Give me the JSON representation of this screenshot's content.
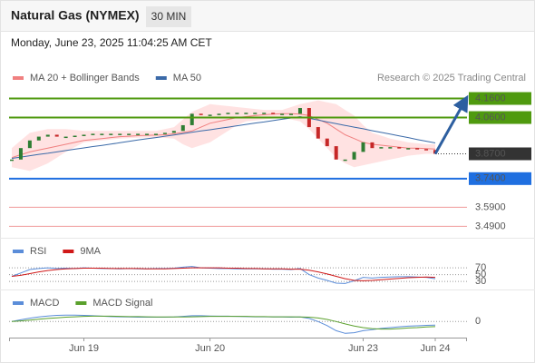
{
  "chart_data": [
    {
      "type": "candlestick",
      "title": "Natural Gas (NYMEX)",
      "timeframe": "30 MIN",
      "subtitle": "Monday, June 23, 2025 11:04:25 AM CET",
      "source": "Research © 2025 Trading Central",
      "categories": [
        null,
        null,
        null,
        null,
        null,
        null,
        null,
        null,
        "Jun 19",
        null,
        null,
        null,
        null,
        null,
        null,
        null,
        null,
        null,
        null,
        null,
        null,
        null,
        "Jun 20",
        null,
        null,
        null,
        null,
        null,
        null,
        null,
        null,
        null,
        null,
        null,
        null,
        null,
        null,
        null,
        null,
        "Jun 23",
        null,
        null,
        null,
        null,
        null,
        null,
        null,
        "Jun 24"
      ],
      "values": [
        3.84,
        3.9,
        3.94,
        3.96,
        3.97,
        3.96,
        3.96,
        3.965,
        3.97,
        3.975,
        3.975,
        3.975,
        3.975,
        3.975,
        3.975,
        3.975,
        3.975,
        3.98,
        3.99,
        4.02,
        4.08,
        4.075,
        4.075,
        4.08,
        4.085,
        4.085,
        4.085,
        4.085,
        4.085,
        4.08,
        4.08,
        4.08,
        4.11,
        4.01,
        3.95,
        3.91,
        3.84,
        3.84,
        3.88,
        3.93,
        3.9,
        3.905,
        3.905,
        3.9,
        3.9,
        3.895,
        3.89,
        3.87
      ],
      "up_color": "#2e7d32",
      "down_color": "#c62828",
      "series": [
        {
          "name": "MA 20 + Bollinger Bands",
          "color": "#f08080",
          "band_color": "#ffd6d6",
          "values": [
            3.85,
            3.865,
            3.88,
            3.89,
            3.9,
            3.91,
            3.92,
            3.93,
            3.94,
            3.945,
            3.95,
            3.955,
            3.96,
            3.962,
            3.965,
            3.967,
            3.968,
            3.97,
            3.975,
            3.982,
            3.99,
            4.01,
            4.03,
            4.04,
            4.05,
            4.06,
            4.065,
            4.07,
            4.075,
            4.078,
            4.08,
            4.08,
            4.078,
            4.07,
            4.05,
            4.03,
            4.0,
            3.97,
            3.95,
            3.93,
            3.92,
            3.915,
            3.91,
            3.905,
            3.9,
            3.9,
            3.897,
            3.895
          ],
          "upper": [
            3.9,
            3.94,
            3.98,
            3.99,
            4.0,
            4.0,
            4.0,
            3.995,
            3.99,
            3.99,
            3.99,
            3.99,
            3.99,
            3.99,
            3.99,
            3.99,
            3.99,
            4.0,
            4.01,
            4.05,
            4.09,
            4.11,
            4.13,
            4.125,
            4.12,
            4.115,
            4.11,
            4.105,
            4.1,
            4.1,
            4.1,
            4.115,
            4.13,
            4.14,
            4.15,
            4.14,
            4.13,
            4.1,
            4.07,
            4.02,
            3.98,
            3.965,
            3.95,
            3.94,
            3.93,
            3.925,
            3.92,
            3.92
          ],
          "lower": [
            3.8,
            3.79,
            3.78,
            3.8,
            3.82,
            3.85,
            3.88,
            3.905,
            3.93,
            3.935,
            3.94,
            3.945,
            3.95,
            3.952,
            3.954,
            3.955,
            3.955,
            3.953,
            3.95,
            3.92,
            3.9,
            3.915,
            3.93,
            3.96,
            3.99,
            4.02,
            4.04,
            4.045,
            4.05,
            4.055,
            4.06,
            4.05,
            4.04,
            4.0,
            3.95,
            3.9,
            3.85,
            3.82,
            3.8,
            3.81,
            3.82,
            3.83,
            3.84,
            3.85,
            3.86,
            3.865,
            3.87,
            3.87
          ]
        },
        {
          "name": "MA 50",
          "color": "#3b6aa8",
          "values": [
            3.846,
            3.853,
            3.86,
            3.867,
            3.873,
            3.88,
            3.887,
            3.894,
            3.901,
            3.908,
            3.914,
            3.921,
            3.928,
            3.935,
            3.942,
            3.949,
            3.955,
            3.962,
            3.969,
            3.976,
            3.983,
            3.99,
            3.996,
            4.003,
            4.01,
            4.017,
            4.024,
            4.031,
            4.037,
            4.044,
            4.051,
            4.058,
            4.065,
            4.056,
            4.047,
            4.037,
            4.028,
            4.019,
            4.01,
            4.001,
            3.991,
            3.982,
            3.973,
            3.964,
            3.955,
            3.945,
            3.936,
            3.927
          ]
        }
      ],
      "levels": [
        {
          "value": 4.16,
          "label": "4.1600",
          "color": "#4f9a0f",
          "box": true,
          "line": "solid"
        },
        {
          "value": 4.06,
          "label": "4.0600",
          "color": "#4f9a0f",
          "box": true,
          "line": "solid"
        },
        {
          "value": 3.87,
          "label": "3.8700",
          "color": "#333333",
          "box": true,
          "line": "dotted"
        },
        {
          "value": 3.74,
          "label": "3.7400",
          "color": "#1f6fe0",
          "box": true,
          "line": "solid"
        },
        {
          "value": 3.59,
          "label": "3.5900",
          "color": "#e03434",
          "box": false,
          "line": "solid"
        },
        {
          "value": 3.49,
          "label": "3.4900",
          "color": "#e03434",
          "box": false,
          "line": "solid"
        }
      ],
      "ylim": [
        3.43,
        4.21
      ]
    },
    {
      "type": "line",
      "series": [
        {
          "name": "RSI",
          "color": "#5b8dd9",
          "values": [
            45,
            55,
            65,
            68,
            70,
            68,
            69,
            68,
            70,
            69,
            68,
            68,
            67,
            68,
            67,
            67,
            68,
            68,
            69,
            72,
            74,
            70,
            69,
            68,
            68,
            67,
            67,
            67,
            67,
            66,
            66,
            65,
            68,
            50,
            40,
            33,
            25,
            24,
            32,
            42,
            40,
            42,
            43,
            44,
            44,
            43,
            42,
            38
          ]
        },
        {
          "name": "9MA",
          "color": "#d01818",
          "values": [
            45,
            48,
            53,
            58,
            62,
            65,
            67,
            68,
            69,
            69,
            69,
            68,
            68,
            68,
            68,
            67,
            67,
            67,
            68,
            69,
            70,
            70,
            70,
            70,
            69,
            69,
            68,
            68,
            67,
            67,
            67,
            66,
            66,
            63,
            58,
            52,
            45,
            38,
            33,
            32,
            33,
            35,
            37,
            39,
            41,
            42,
            43,
            42
          ]
        }
      ],
      "ylim": [
        9,
        97
      ],
      "yticks": [
        70,
        50,
        30
      ]
    },
    {
      "type": "line",
      "series": [
        {
          "name": "MACD",
          "color": "#5b8dd9",
          "values": [
            0,
            0.008,
            0.016,
            0.022,
            0.027,
            0.03,
            0.031,
            0.031,
            0.03,
            0.028,
            0.026,
            0.024,
            0.023,
            0.022,
            0.021,
            0.021,
            0.021,
            0.021,
            0.022,
            0.025,
            0.028,
            0.028,
            0.027,
            0.026,
            0.026,
            0.025,
            0.024,
            0.023,
            0.023,
            0.022,
            0.022,
            0.021,
            0.022,
            0.015,
            0.0,
            -0.02,
            -0.045,
            -0.058,
            -0.055,
            -0.045,
            -0.04,
            -0.034,
            -0.03,
            -0.026,
            -0.023,
            -0.021,
            -0.019,
            -0.018
          ]
        },
        {
          "name": "MACD Signal",
          "color": "#5aa02c",
          "values": [
            0,
            0.003,
            0.007,
            0.011,
            0.015,
            0.018,
            0.021,
            0.023,
            0.025,
            0.026,
            0.026,
            0.026,
            0.025,
            0.024,
            0.024,
            0.023,
            0.022,
            0.022,
            0.022,
            0.022,
            0.023,
            0.024,
            0.025,
            0.025,
            0.025,
            0.025,
            0.025,
            0.024,
            0.024,
            0.023,
            0.023,
            0.023,
            0.022,
            0.021,
            0.017,
            0.01,
            0.0,
            -0.012,
            -0.022,
            -0.03,
            -0.035,
            -0.037,
            -0.037,
            -0.035,
            -0.032,
            -0.03,
            -0.027,
            -0.025
          ]
        }
      ],
      "ylim": [
        -0.07,
        0.05
      ],
      "yticks": [
        0
      ]
    }
  ]
}
